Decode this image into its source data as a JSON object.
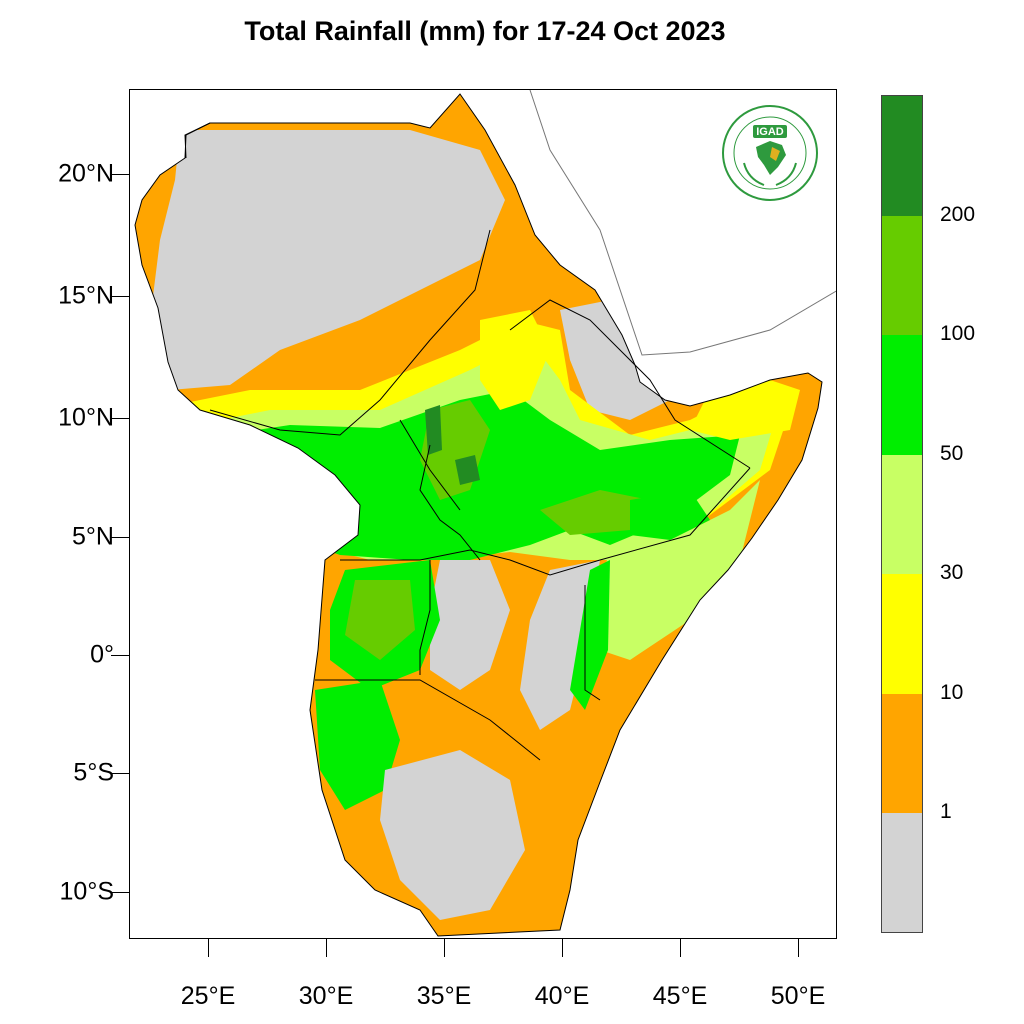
{
  "title": "Total Rainfall (mm) for 17-24 Oct 2023",
  "map": {
    "region": "Greater Horn of Africa",
    "lon_range": [
      21.7,
      51.7
    ],
    "lat_range": [
      -11.9,
      24.0
    ],
    "lat_ticks": [
      {
        "value": 20,
        "label": "20°N"
      },
      {
        "value": 15,
        "label": "15°N"
      },
      {
        "value": 10,
        "label": "10°N"
      },
      {
        "value": 5,
        "label": "5°N"
      },
      {
        "value": 0,
        "label": "0°"
      },
      {
        "value": -5,
        "label": "5°S"
      },
      {
        "value": -10,
        "label": "10°S"
      }
    ],
    "lon_ticks": [
      {
        "value": 25,
        "label": "25°E"
      },
      {
        "value": 30,
        "label": "30°E"
      },
      {
        "value": 35,
        "label": "35°E"
      },
      {
        "value": 40,
        "label": "40°E"
      },
      {
        "value": 45,
        "label": "45°E"
      },
      {
        "value": 50,
        "label": "50°E"
      }
    ]
  },
  "legend": {
    "bands": [
      {
        "color": "#d3d3d3"
      },
      {
        "color": "#ffa500"
      },
      {
        "color": "#ffff00"
      },
      {
        "color": "#c8ff64"
      },
      {
        "color": "#00ee00"
      },
      {
        "color": "#66cc00"
      },
      {
        "color": "#228b22"
      }
    ],
    "labels": [
      "1",
      "10",
      "30",
      "50",
      "100",
      "200"
    ]
  },
  "logo": {
    "text": "IGAD",
    "ring_text": "INTERGOVERNMENTAL AUTHORITY ON DEVELOPMENT · AUTORITÉ INTERGOUVERNEMENTALE POUR LE DÉVELOPPEMENT"
  },
  "colors": {
    "dry": "#d3d3d3",
    "orange": "#ffa500",
    "yellow": "#ffff00",
    "light_green": "#c8ff64",
    "green": "#00ee00",
    "mid_green": "#66cc00",
    "dark_green": "#228b22",
    "logo_green": "#2e9a3e"
  }
}
